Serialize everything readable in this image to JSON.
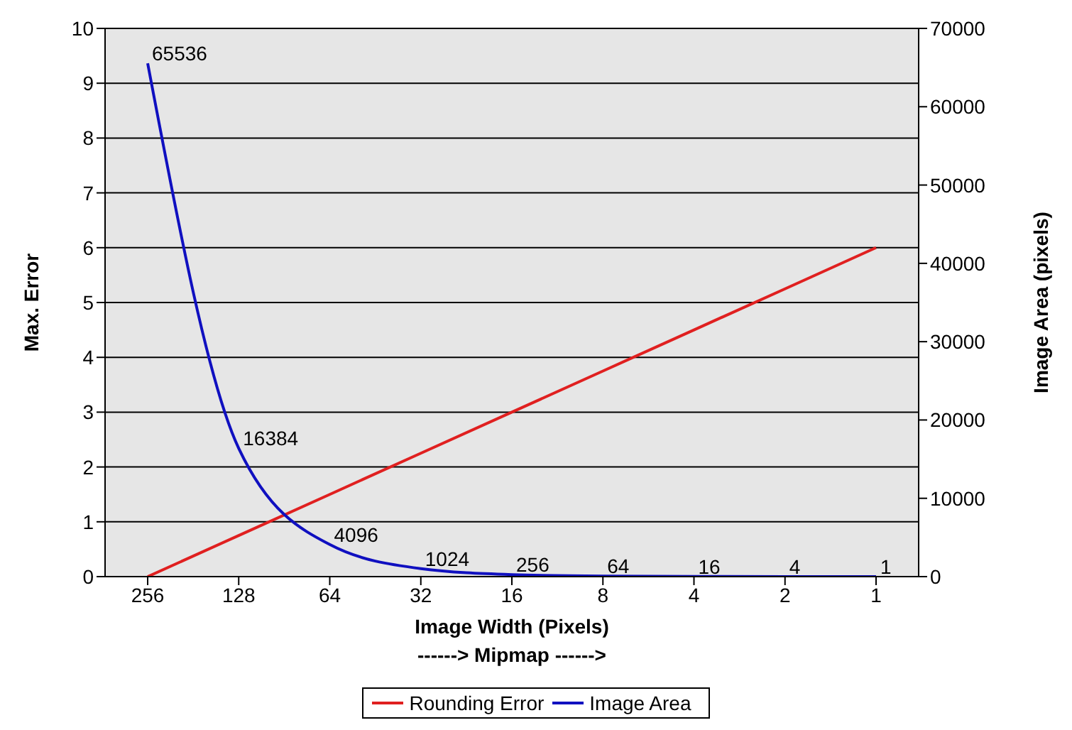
{
  "chart_data": {
    "type": "line",
    "categories": [
      "256",
      "128",
      "64",
      "32",
      "16",
      "8",
      "4",
      "2",
      "1"
    ],
    "xlabel": "Image Width (Pixels)\n------> Mipmap ------>",
    "ylabel": "Max. Error",
    "y2label": "Image Area (pixels)",
    "ylim": [
      0,
      10
    ],
    "yticks": [
      0,
      1,
      2,
      3,
      4,
      5,
      6,
      7,
      8,
      9,
      10
    ],
    "y2lim": [
      0,
      70000
    ],
    "y2ticks": [
      0,
      10000,
      20000,
      30000,
      40000,
      50000,
      60000,
      70000
    ],
    "grid": "y",
    "legend": "bottom",
    "marker": "none",
    "line_style": "solid",
    "series": [
      {
        "name": "Rounding Error",
        "color": "#e02020",
        "values": [
          0,
          0.75,
          1.5,
          2.25,
          3,
          3.75,
          4.5,
          5.25,
          6
        ]
      },
      {
        "name": "Image Area",
        "color": "#1010c0",
        "axis": "y2",
        "values": [
          65536,
          16384,
          4096,
          1024,
          256,
          64,
          16,
          4,
          1
        ],
        "value_labels": [
          "65536",
          "16384",
          "4096",
          "1024",
          "256",
          "64",
          "16",
          "4",
          "1"
        ]
      }
    ]
  }
}
